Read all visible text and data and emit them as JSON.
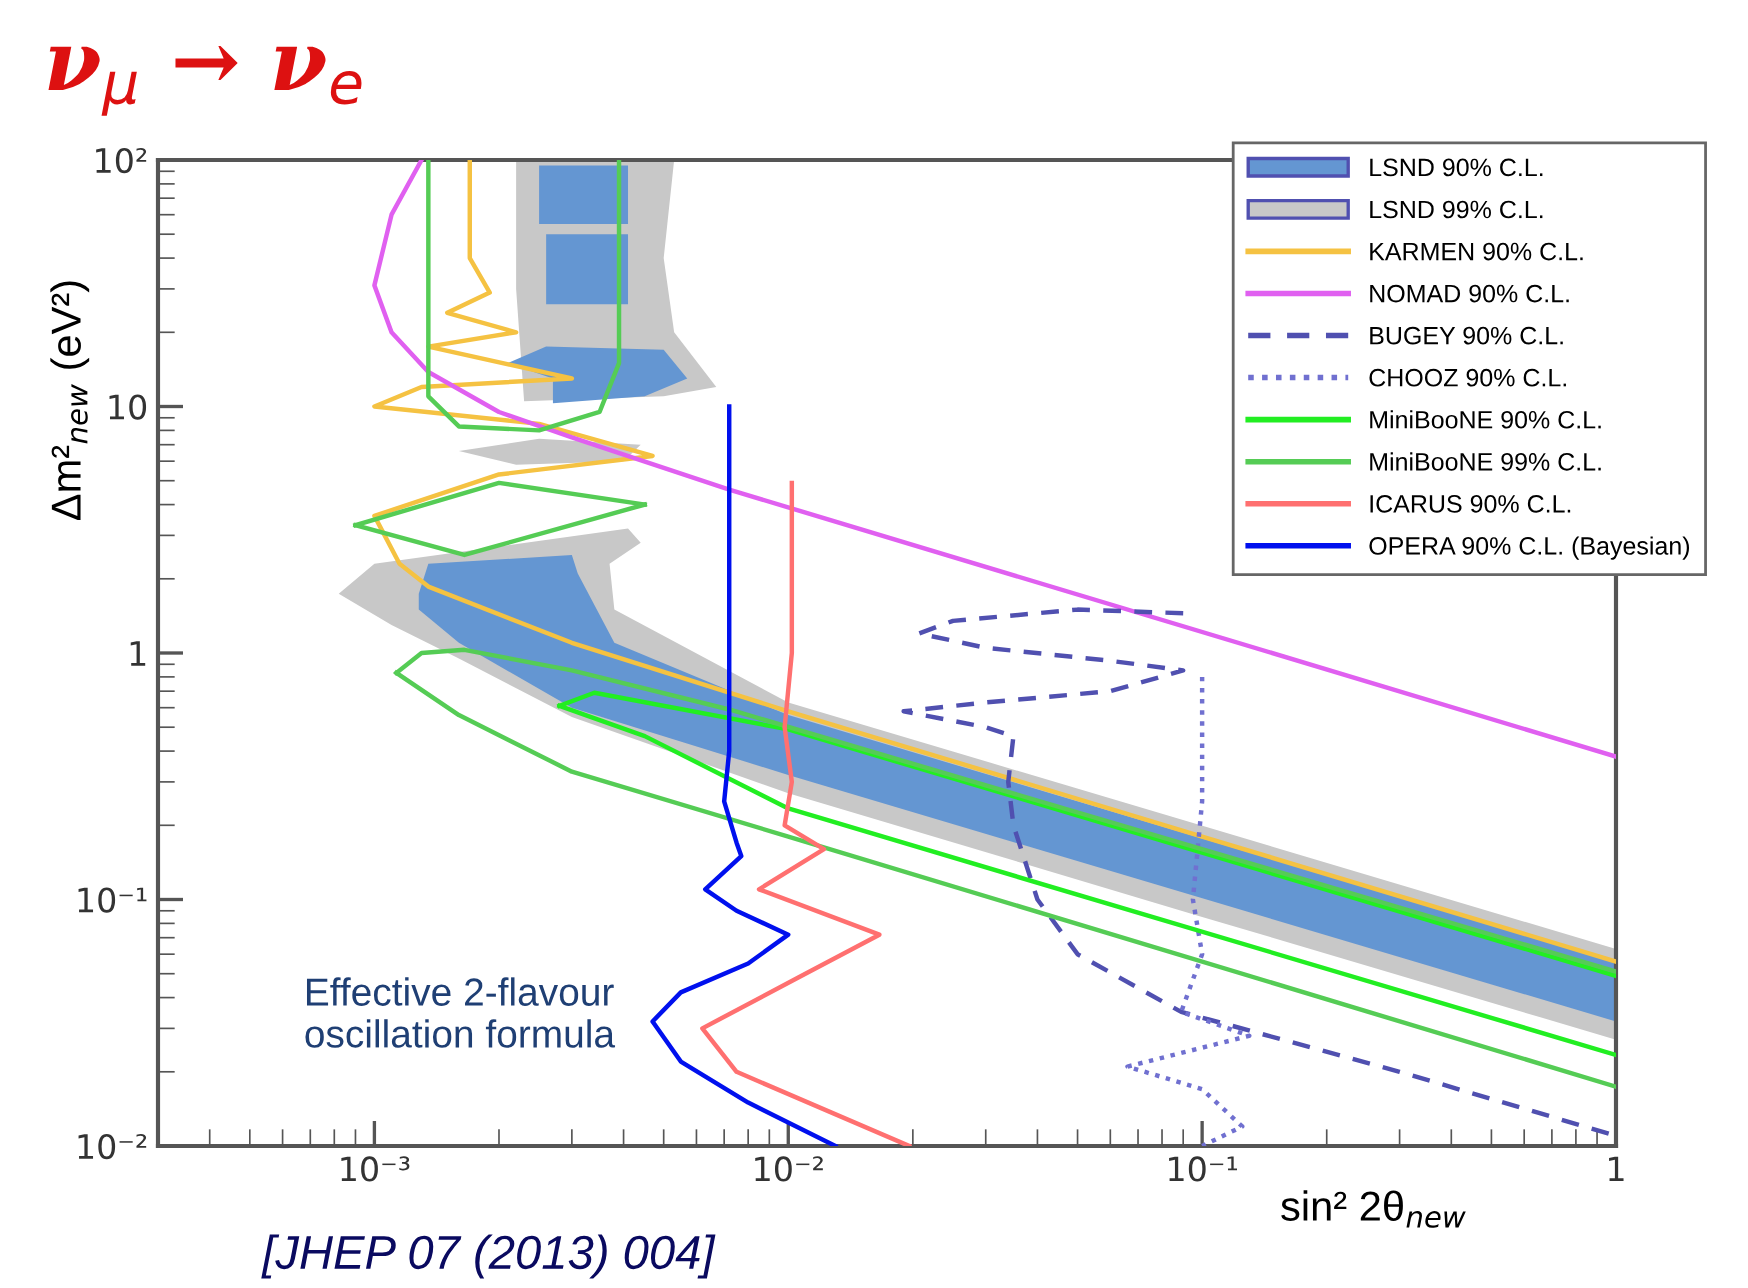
{
  "chart_data": {
    "type": "line",
    "title": "ν$_{μ}$ → ν$_{e}$",
    "xlabel": "sin² 2θ$_{new}$",
    "ylabel": "Δm²$_{new}$ (eV²)",
    "log": "xy",
    "xlim": [
      0.0003,
      1
    ],
    "ylim": [
      0.01,
      100
    ],
    "xticks": [
      {
        "value": 0.001,
        "label": "10⁻³"
      },
      {
        "value": 0.01,
        "label": "10⁻²"
      },
      {
        "value": 0.1,
        "label": "10⁻¹"
      },
      1
    ],
    "yticks": [
      {
        "value": 0.01,
        "label": "10⁻²"
      },
      {
        "value": 0.1,
        "label": "10⁻¹"
      },
      1,
      10,
      {
        "value": 100,
        "label": "10²"
      }
    ],
    "grid": false,
    "legend": "top right",
    "annotations": [
      "Effective 2-flavour\noscillation formula",
      "[JHEP 07 (2013) 004]"
    ],
    "series": [
      {
        "name": "LSND 90% C.L.",
        "type": "area",
        "color": "#6496d2",
        "x": [
          0.00128,
          0.00135,
          0.003,
          0.0031,
          0.0038,
          0.01,
          1,
          1,
          0.01,
          0.003,
          0.0016,
          0.00128,
          null,
          0.0025,
          0.0041,
          0.0041,
          0.0025,
          null,
          0.0026,
          0.0041,
          0.0041,
          0.0026,
          null,
          0.0021,
          0.0026,
          0.005,
          0.0057,
          0.0045,
          0.0027,
          0.0027
        ],
        "values": [
          1.74,
          2.3,
          2.5,
          2.1,
          1.1,
          0.56,
          0.056,
          0.032,
          0.32,
          0.6,
          1.1,
          1.5,
          null,
          95,
          95,
          55,
          55,
          null,
          50,
          50,
          26,
          26,
          null,
          15,
          17.5,
          17,
          13,
          11,
          10.3,
          13
        ]
      },
      {
        "name": "LSND 99% C.L.",
        "type": "area",
        "color": "#c8c8c8",
        "x": [
          0.00082,
          0.001,
          0.0041,
          0.0044,
          0.0037,
          0.0038,
          0.01,
          1,
          1,
          0.1,
          0.01,
          0.003,
          0.0016,
          0.0011,
          null,
          0.0022,
          0.0053,
          0.005,
          0.0053,
          0.0067,
          0.005,
          0.0023,
          0.0022,
          null,
          0.0016,
          0.0025,
          0.0044,
          0.004,
          0.0022
        ],
        "values": [
          1.74,
          2.3,
          3.2,
          2.8,
          2.3,
          1.5,
          0.63,
          0.063,
          0.027,
          0.085,
          0.27,
          0.55,
          0.95,
          1.3,
          null,
          100,
          100,
          40,
          20,
          12,
          11,
          10.5,
          30,
          null,
          6.6,
          7.4,
          7.0,
          6.0,
          5.8
        ]
      },
      {
        "name": "KARMEN 90% C.L.",
        "color": "#f5c242",
        "line_style": "solid",
        "x": [
          0.0017,
          0.0017,
          0.0019,
          0.0015,
          0.0022,
          0.00135,
          0.003,
          0.0013,
          0.001,
          0.0025,
          0.0047,
          0.002,
          0.001,
          0.00115,
          0.00135,
          0.003,
          0.01,
          0.1,
          1
        ],
        "values": [
          100,
          40,
          29,
          24,
          20,
          17.5,
          13,
          12,
          10,
          8.5,
          6.3,
          5.3,
          3.6,
          2.3,
          1.86,
          1.1,
          0.58,
          0.18,
          0.056
        ]
      },
      {
        "name": "NOMAD 90% C.L.",
        "color": "#e060f0",
        "line_style": "solid",
        "x": [
          0.0013,
          0.0011,
          0.001,
          0.0011,
          0.00135,
          0.002,
          0.003,
          0.0072,
          1
        ],
        "values": [
          100,
          60,
          31,
          20,
          13.8,
          9.5,
          7.5,
          4.6,
          0.38
        ]
      },
      {
        "name": "BUGEY 90% C.L.",
        "color": "#5050b0",
        "line_style": "dashed",
        "x": [
          0.09,
          0.05,
          0.025,
          0.0207,
          0.03,
          0.06,
          0.09,
          0.06,
          0.03,
          0.019,
          0.03,
          0.035,
          0.034,
          0.035,
          0.04,
          0.05,
          0.089,
          0.3,
          1
        ],
        "values": [
          1.45,
          1.5,
          1.35,
          1.2,
          1.05,
          0.93,
          0.85,
          0.7,
          0.63,
          0.58,
          0.5,
          0.46,
          0.3,
          0.2,
          0.1,
          0.06,
          0.035,
          0.02,
          0.011
        ]
      },
      {
        "name": "CHOOZ 90% C.L.",
        "color": "#7070d0",
        "line_style": "dotted",
        "x": [
          0.1,
          0.1,
          0.095,
          0.1,
          0.089,
          0.13,
          0.066,
          0.1,
          0.125,
          0.1
        ],
        "values": [
          0.8,
          0.25,
          0.1,
          0.06,
          0.035,
          0.028,
          0.021,
          0.017,
          0.012,
          0.01
        ]
      },
      {
        "name": "MiniBooNE 90% C.L.",
        "color": "#22ee22",
        "line_style": "solid",
        "x": [
          0.0028,
          0.0034,
          0.01,
          1,
          null,
          0.0028,
          0.0045,
          0.01,
          1
        ],
        "values": [
          0.61,
          0.69,
          0.49,
          0.049,
          null,
          0.61,
          0.46,
          0.234,
          0.0234
        ]
      },
      {
        "name": "MiniBooNE 99% C.L.",
        "color": "#55cc55",
        "line_style": "solid",
        "x": [
          0.00135,
          0.00135,
          0.0016,
          0.0025,
          0.0035,
          0.0039,
          0.0039,
          null,
          0.0009,
          0.002,
          0.0045,
          null,
          0.0009,
          0.00165,
          0.0045,
          null,
          0.00113,
          0.0013,
          0.00165,
          0.003,
          0.0072,
          1,
          null,
          0.00113,
          0.0016,
          0.003,
          0.01,
          1
        ],
        "values": [
          100,
          11,
          8.3,
          8.0,
          9.5,
          15,
          100,
          null,
          3.3,
          4.9,
          4.0,
          null,
          3.3,
          2.5,
          4.0,
          null,
          0.83,
          1.0,
          1.03,
          0.85,
          0.59,
          0.051,
          null,
          0.83,
          0.56,
          0.33,
          0.18,
          0.0174
        ]
      },
      {
        "name": "ICARUS 90% C.L.",
        "color": "#ff7070",
        "line_style": "solid",
        "x": [
          0.0102,
          0.0102,
          0.0098,
          0.0102,
          0.0098,
          0.0122,
          0.0085,
          0.0166,
          0.011,
          0.0062,
          0.0075,
          0.0196
        ],
        "values": [
          4.9,
          1,
          0.5,
          0.3,
          0.2,
          0.16,
          0.11,
          0.072,
          0.05,
          0.03,
          0.02,
          0.01
        ]
      },
      {
        "name": "OPERA 90% C.L. (Bayesian)",
        "color": "#0010ee",
        "line_style": "solid",
        "x": [
          0.0072,
          0.0072,
          0.007,
          0.0075,
          0.0077,
          0.0063,
          0.0075,
          0.01,
          0.008,
          0.0055,
          0.0047,
          0.0055,
          0.008,
          0.013
        ],
        "values": [
          10,
          0.4,
          0.25,
          0.17,
          0.15,
          0.11,
          0.09,
          0.072,
          0.055,
          0.042,
          0.032,
          0.022,
          0.015,
          0.01
        ]
      }
    ]
  }
}
